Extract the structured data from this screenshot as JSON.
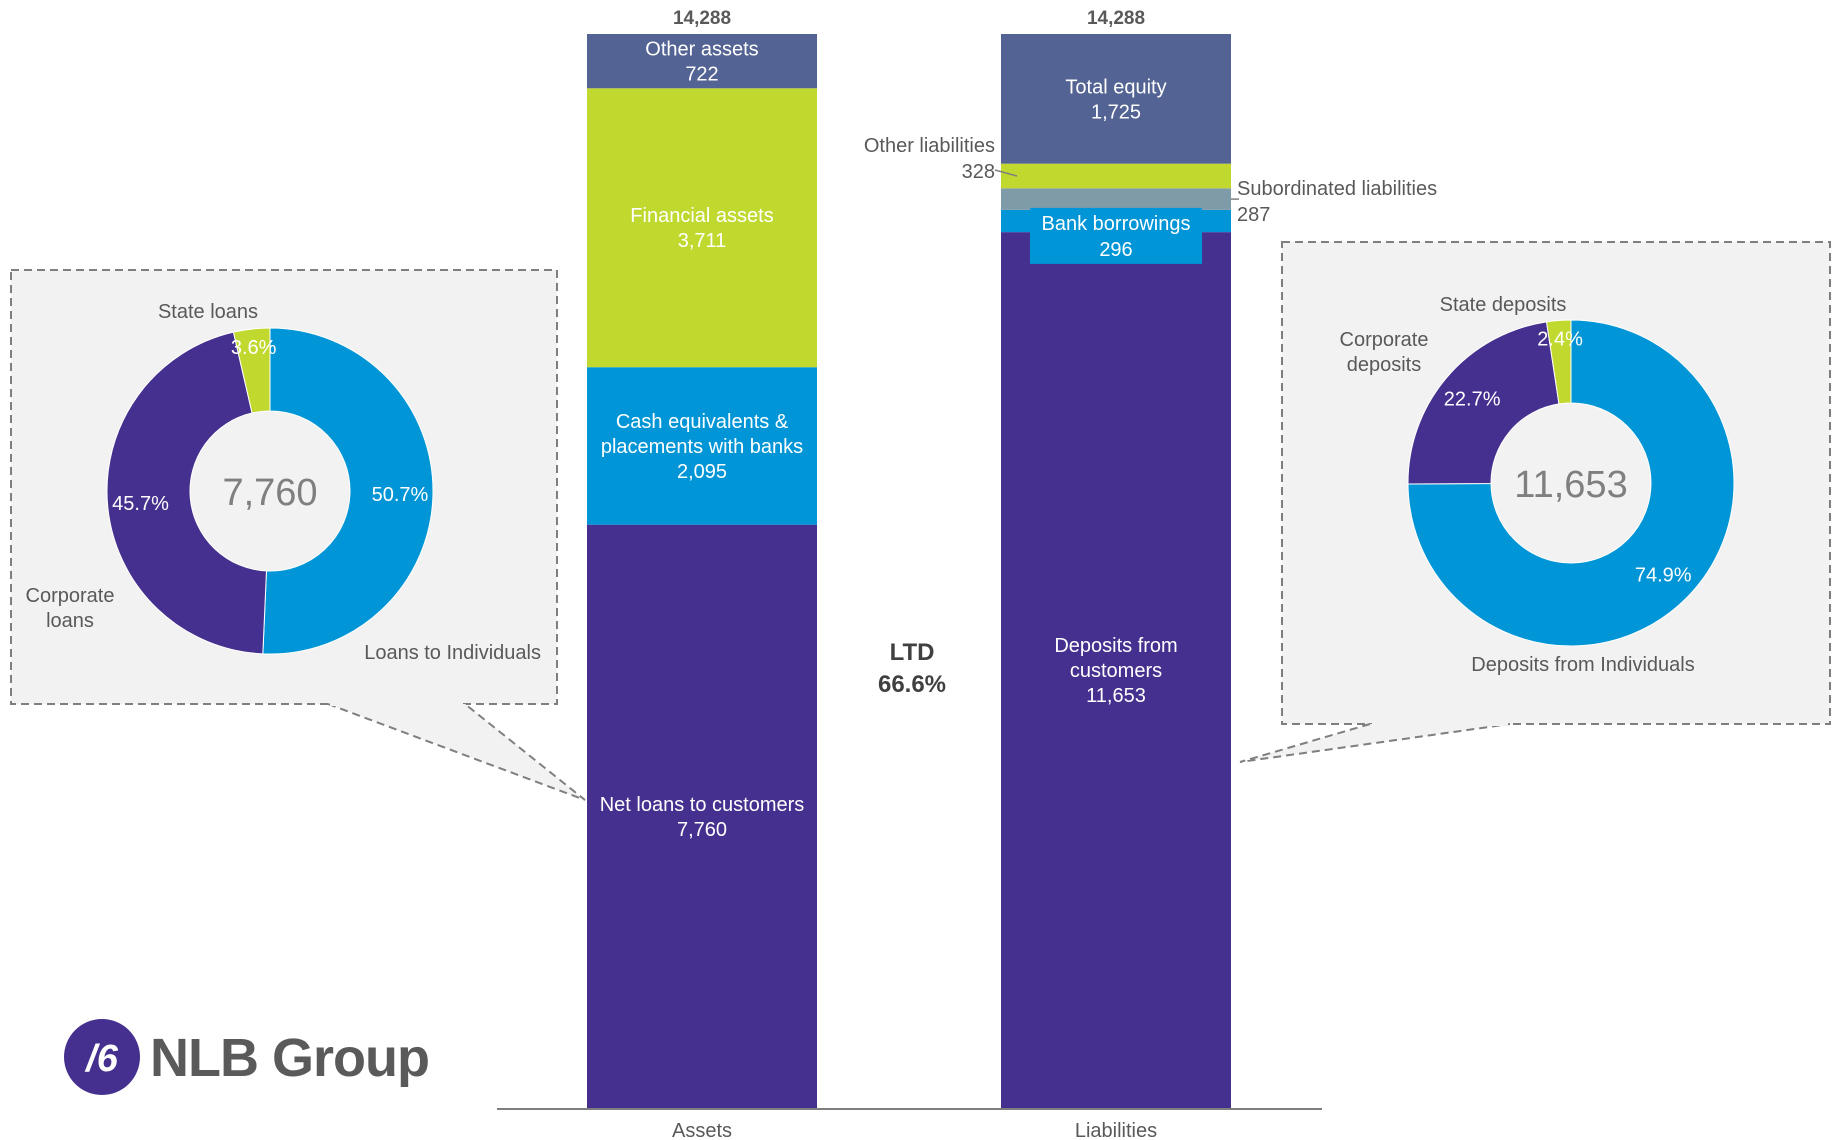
{
  "chart_data": [
    {
      "type": "bar",
      "subtype": "stacked",
      "categories": [
        "Assets",
        "Liabilities"
      ],
      "totals": [
        "14,288",
        "14,288"
      ],
      "ylim": [
        0,
        14288
      ],
      "series_assets": [
        {
          "name": "Net loans to customers",
          "value": 7760,
          "label": [
            "Net loans to customers",
            "7,760"
          ],
          "color": "#46308f"
        },
        {
          "name": "Cash equivalents & placements with banks",
          "value": 2095,
          "label": [
            "Cash equivalents &",
            "placements with banks",
            "2,095"
          ],
          "color": "#0095d6"
        },
        {
          "name": "Financial assets",
          "value": 3711,
          "label": [
            "Financial assets",
            "3,711"
          ],
          "color": "#c1d82f"
        },
        {
          "name": "Other assets",
          "value": 722,
          "label": [
            "Other assets",
            "722"
          ],
          "color": "#536393"
        }
      ],
      "series_liabilities": [
        {
          "name": "Deposits from customers",
          "value": 11653,
          "label": [
            "Deposits from",
            "customers",
            "11,653"
          ],
          "color": "#46308f"
        },
        {
          "name": "Bank borrowings",
          "value": 296,
          "label": [
            "Bank borrowings",
            "296"
          ],
          "color": "#0095d6"
        },
        {
          "name": "Subordinated liabilities",
          "value": 287,
          "label": [
            "Subordinated liabilities",
            "287"
          ],
          "color": "#7f9ba8"
        },
        {
          "name": "Other liabilities",
          "value": 328,
          "label": [
            "Other liabilities",
            "328"
          ],
          "color": "#c1d82f"
        },
        {
          "name": "Total equity",
          "value": 1725,
          "label": [
            "Total equity",
            "1,725"
          ],
          "color": "#536393"
        }
      ],
      "annotation": {
        "line1": "LTD",
        "line2": "66.6%"
      },
      "grid": false
    },
    {
      "type": "pie",
      "subtype": "donut",
      "center_label": "7,760",
      "slices": [
        {
          "name": "Loans to Individuals",
          "value": 50.7,
          "pct_label": "50.7%",
          "color": "#0095d6"
        },
        {
          "name": "Corporate loans",
          "value": 45.7,
          "pct_label": "45.7%",
          "color": "#46308f"
        },
        {
          "name": "State loans",
          "value": 3.6,
          "pct_label": "3.6%",
          "color": "#c1d82f"
        }
      ],
      "labels": {
        "state": "State loans",
        "corporate": [
          "Corporate",
          "loans"
        ],
        "individuals": "Loans to Individuals"
      }
    },
    {
      "type": "pie",
      "subtype": "donut",
      "center_label": "11,653",
      "slices": [
        {
          "name": "Deposits from Individuals",
          "value": 74.9,
          "pct_label": "74.9%",
          "color": "#0095d6"
        },
        {
          "name": "Corporate deposits",
          "value": 22.7,
          "pct_label": "22.7%",
          "color": "#46308f"
        },
        {
          "name": "State deposits",
          "value": 2.4,
          "pct_label": "2.4%",
          "color": "#c1d82f"
        }
      ],
      "labels": {
        "state": "State deposits",
        "corporate": [
          "Corporate",
          "deposits"
        ],
        "individuals": "Deposits from Individuals"
      }
    }
  ],
  "logo": {
    "text": "NLB Group",
    "mark_color": "#46308f",
    "text_color": "#5a5a5a"
  },
  "colors": {
    "label_grey": "#595959",
    "axis": "#7f7f7f",
    "callout_border": "#7f7f7f",
    "callout_fill": "#f2f2f2"
  }
}
